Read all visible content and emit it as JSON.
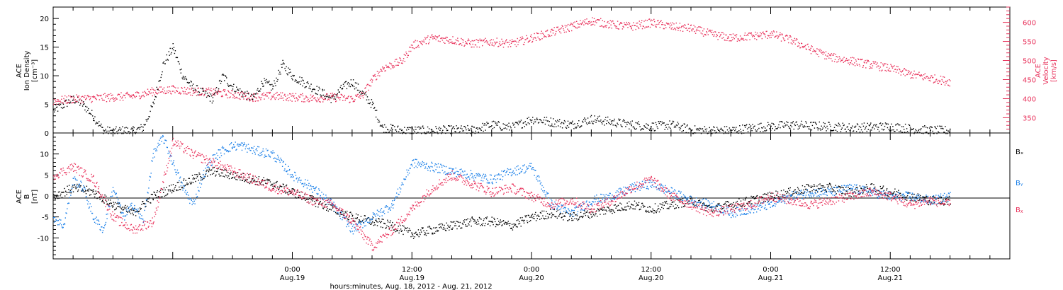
{
  "chart_data": [
    {
      "type": "scatter",
      "panel": "top",
      "ylabel_left": [
        "ACE",
        "Ion Density",
        "[cm⁻³]"
      ],
      "ylabel_right": [
        "ACE",
        "Velocity",
        "[km/s]"
      ],
      "ylim_left": [
        0,
        22
      ],
      "ylim_right": [
        310,
        640
      ],
      "yticks_left": [
        0,
        5,
        10,
        15,
        20
      ],
      "yticks_right": [
        350,
        400,
        450,
        500,
        550,
        600
      ],
      "series": [
        {
          "axis": "left",
          "color": "#000000",
          "x": [
            0,
            1,
            2,
            3,
            4,
            5,
            6,
            7,
            8,
            9,
            10,
            11,
            12,
            13,
            14,
            15,
            16,
            17,
            18,
            19,
            20,
            21,
            22,
            23,
            24,
            25,
            26,
            27,
            28,
            29,
            30,
            31,
            32,
            33,
            34,
            35,
            36,
            38,
            40,
            42,
            44,
            46,
            48,
            50,
            52,
            54,
            56,
            58,
            60,
            62,
            64,
            66,
            68,
            70,
            72,
            74,
            76,
            78,
            80,
            82,
            84,
            86,
            88,
            90
          ],
          "y": [
            4,
            5,
            6,
            5,
            3,
            0.5,
            0.3,
            0.5,
            0.4,
            1,
            5,
            12,
            15,
            10,
            8,
            7,
            6,
            10,
            8,
            7,
            6,
            9,
            8,
            12,
            10,
            9,
            8,
            7,
            6,
            8,
            9,
            7,
            5,
            1,
            0.8,
            0.5,
            0.5,
            0.5,
            0.6,
            0.6,
            1.5,
            1,
            2.5,
            2,
            1.5,
            2.5,
            2,
            1.5,
            1.2,
            1.5,
            0.6,
            0.5,
            0.5,
            1,
            1.2,
            1.5,
            1.3,
            1.2,
            1,
            1.1,
            1.2,
            0.8,
            0.5,
            0.5
          ]
        },
        {
          "axis": "right",
          "color": "#e8305a",
          "x": [
            0,
            2,
            4,
            6,
            8,
            10,
            12,
            14,
            16,
            18,
            20,
            22,
            24,
            26,
            28,
            30,
            31,
            32,
            33,
            34,
            35,
            36,
            38,
            40,
            42,
            44,
            46,
            48,
            50,
            52,
            54,
            56,
            58,
            60,
            62,
            64,
            66,
            68,
            70,
            72,
            74,
            76,
            78,
            80,
            82,
            84,
            86,
            88,
            90
          ],
          "y": [
            395,
            400,
            402,
            405,
            408,
            420,
            425,
            420,
            418,
            412,
            405,
            408,
            405,
            402,
            405,
            400,
            410,
            450,
            480,
            490,
            500,
            540,
            560,
            555,
            545,
            550,
            545,
            560,
            575,
            590,
            605,
            595,
            590,
            600,
            590,
            585,
            570,
            560,
            565,
            570,
            555,
            530,
            510,
            500,
            490,
            480,
            465,
            455,
            445
          ]
        }
      ]
    },
    {
      "type": "line",
      "panel": "bottom",
      "ylabel_left": [
        "ACE",
        "B",
        "[nT]"
      ],
      "ylim": [
        -15,
        15
      ],
      "yticks": [
        -10,
        -5,
        0,
        5,
        10
      ],
      "zero_line": true,
      "series": [
        {
          "name": "Bₓ",
          "color": "#000000",
          "x": [
            0,
            2,
            4,
            6,
            8,
            10,
            12,
            14,
            16,
            18,
            20,
            22,
            24,
            26,
            28,
            30,
            32,
            34,
            36,
            38,
            40,
            42,
            44,
            46,
            48,
            50,
            52,
            54,
            56,
            58,
            60,
            62,
            64,
            66,
            68,
            70,
            72,
            74,
            76,
            78,
            80,
            82,
            84,
            86,
            88,
            90
          ],
          "y": [
            0,
            2,
            1,
            -2,
            -4,
            0,
            2,
            4,
            6,
            5,
            4,
            3,
            1,
            -1,
            -3,
            -5,
            -6,
            -7,
            -9,
            -8,
            -7,
            -6,
            -6,
            -7,
            -5,
            -4,
            -5,
            -4,
            -3,
            -2,
            -3,
            -2,
            -1,
            -3,
            -2,
            -1,
            0,
            1,
            2,
            2,
            1,
            2,
            1,
            0,
            -1,
            -1
          ]
        },
        {
          "name": "Bᵧ",
          "color": "#1a7fe8",
          "x": [
            0,
            1,
            2,
            3,
            4,
            5,
            6,
            7,
            8,
            9,
            10,
            11,
            12,
            13,
            14,
            15,
            16,
            17,
            18,
            19,
            20,
            22,
            24,
            26,
            28,
            30,
            32,
            34,
            36,
            38,
            40,
            42,
            44,
            46,
            48,
            50,
            52,
            54,
            56,
            58,
            60,
            62,
            64,
            66,
            68,
            70,
            72,
            74,
            76,
            78,
            80,
            82,
            84,
            86,
            88,
            90
          ],
          "y": [
            -5,
            -7,
            4,
            2,
            -5,
            -8,
            2,
            -5,
            -2,
            -6,
            10,
            14,
            8,
            2,
            -2,
            5,
            9,
            11,
            12,
            12,
            11,
            10,
            5,
            2,
            -2,
            -8,
            -5,
            -2,
            8,
            7,
            6,
            5,
            4,
            6,
            7,
            -2,
            -4,
            -1,
            0,
            2,
            3,
            1,
            -1,
            -2,
            -4,
            -3,
            -2,
            0,
            1,
            1,
            2,
            1,
            0,
            0,
            -1,
            0
          ]
        },
        {
          "name": "Bᵪ",
          "color": "#e8305a",
          "x": [
            0,
            2,
            4,
            6,
            8,
            10,
            12,
            14,
            16,
            18,
            20,
            22,
            24,
            26,
            28,
            30,
            32,
            34,
            36,
            38,
            40,
            42,
            44,
            46,
            48,
            50,
            52,
            54,
            56,
            58,
            60,
            62,
            64,
            66,
            68,
            70,
            72,
            74,
            76,
            78,
            80,
            82,
            84,
            86,
            88,
            90
          ],
          "y": [
            5,
            7,
            4,
            -5,
            -8,
            -6,
            13,
            10,
            8,
            6,
            4,
            2,
            1,
            -1,
            -2,
            -6,
            -12,
            -8,
            -3,
            2,
            5,
            3,
            1,
            2,
            0,
            -2,
            -1,
            -3,
            -1,
            2,
            4,
            0,
            -2,
            -4,
            -3,
            -2,
            0,
            -1,
            -2,
            -1,
            0,
            1,
            0,
            -2,
            -1,
            -2
          ]
        }
      ],
      "legend": [
        "Bₓ",
        "Bᵧ",
        "Bᵪ"
      ],
      "legend_placement": "right"
    }
  ],
  "x_axis": {
    "tick_labels": [
      {
        "time": "0:00",
        "date": "Aug.19",
        "hour": 24
      },
      {
        "time": "12:00",
        "date": "Aug.19",
        "hour": 36
      },
      {
        "time": "0:00",
        "date": "Aug.20",
        "hour": 48
      },
      {
        "time": "12:00",
        "date": "Aug.20",
        "hour": 60
      },
      {
        "time": "0:00",
        "date": "Aug.21",
        "hour": 72
      },
      {
        "time": "12:00",
        "date": "Aug.21",
        "hour": 84
      }
    ],
    "xlabel": "hours:minutes, Aug. 18, 2012 - Aug. 21, 2012"
  }
}
